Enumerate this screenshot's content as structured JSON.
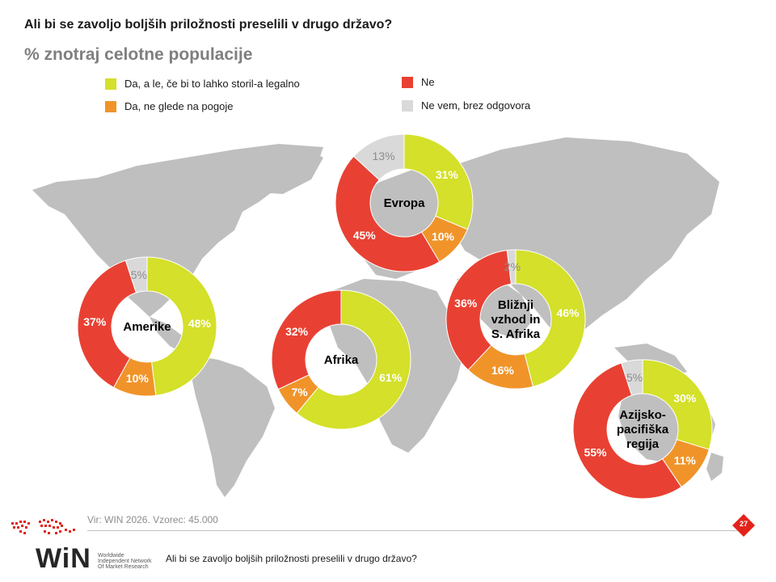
{
  "header": {
    "title": "Ali bi se zavoljo boljših priložnosti preselili v drugo državo?",
    "subtitle": "% znotraj celotne populacije"
  },
  "legend": [
    {
      "label": "Da, a le, če bi to lahko storil-a legalno",
      "color": "#d4e029"
    },
    {
      "label": "Da, ne glede na pogoje",
      "color": "#f0942a"
    },
    {
      "label": "Ne",
      "color": "#e84133"
    },
    {
      "label": "Ne vem, brez odgovora",
      "color": "#d9d9d9"
    }
  ],
  "colors": {
    "yes_legal": "#d4e029",
    "yes_any": "#f0942a",
    "no": "#e84133",
    "dont_know": "#d9d9d9",
    "map": "#bfbfbf",
    "brand_red": "#e2231a"
  },
  "chart_data": {
    "type": "pie",
    "variant": "donut",
    "series_names": [
      "Da, a le, če bi to lahko storil-a legalno",
      "Da, ne glede na pogoje",
      "Ne",
      "Ne vem, brez odgovora"
    ],
    "regions": [
      {
        "name": "Evropa",
        "values": [
          31,
          10,
          45,
          13
        ],
        "labels": [
          "31%",
          "10%",
          "45%",
          "13%"
        ]
      },
      {
        "name": "Amerike",
        "values": [
          48,
          10,
          37,
          5
        ],
        "labels": [
          "48%",
          "10%",
          "37%",
          "5%"
        ]
      },
      {
        "name": "Afrika",
        "values": [
          61,
          7,
          32,
          0
        ],
        "labels": [
          "61%",
          "7%",
          "32%",
          ""
        ]
      },
      {
        "name": "Bližnji vzhod in S. Afrika",
        "name_lines": [
          "Bližnji",
          "vzhod in",
          "S. Afrika"
        ],
        "values": [
          46,
          16,
          36,
          2
        ],
        "labels": [
          "46%",
          "16%",
          "36%",
          "2%"
        ]
      },
      {
        "name": "Azijsko-pacifiška regija",
        "name_lines": [
          "Azijsko-",
          "pacifiška",
          "regija"
        ],
        "values": [
          30,
          11,
          55,
          5
        ],
        "labels": [
          "30%",
          "11%",
          "55%",
          "5%"
        ]
      }
    ]
  },
  "footer": {
    "source": "Vir: WIN 2026.  Vzorec: 45.000",
    "question": "Ali bi se zavoljo boljših priložnosti preselili v drugo državo?",
    "page": "27",
    "logo_text": "WiN",
    "logo_sub": [
      "Worldwide",
      "Independent Network",
      "Of Market Research"
    ]
  }
}
